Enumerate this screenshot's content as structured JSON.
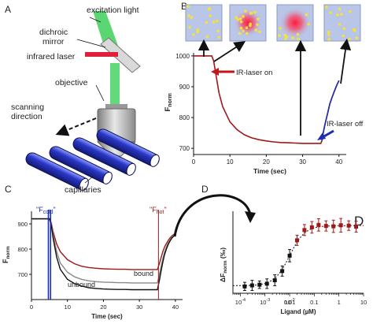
{
  "panels": {
    "A": {
      "letter": "A",
      "labels": {
        "excitation": "excitation light",
        "dichroic_1": "dichroic",
        "dichroic_2": "mirror",
        "infrared": "infrared laser",
        "objective": "objective",
        "scan_1": "scanning",
        "scan_2": "direction",
        "capillaries": "capillaries"
      }
    },
    "B": {
      "letter": "B",
      "annotations": {
        "ir_on": "IR-laser on",
        "ir_off": "IR-laser off"
      }
    },
    "C": {
      "letter": "C",
      "annotations": {
        "fcold": "\"F",
        "fcold_sub": "cold",
        "fhot": "\"F",
        "fhot_sub": "hot",
        "quote": "\"",
        "bound": "bound",
        "unbound": "unbound"
      }
    },
    "D": {
      "letter": "D",
      "corner_letter": "D"
    }
  },
  "colors": {
    "red_trace": "#a01818",
    "black_trace": "#111111",
    "grey_trace": "#888888",
    "blue_marker": "#1a2fb0",
    "arrow_red": "#c0161c",
    "capillary_blue": "#2a36c8",
    "laser_green": "#3dd05a",
    "dot_yellow": "#f4e23c",
    "spot_red": "#e8203a",
    "box_bg": "#b9c6e8"
  },
  "chart_data": [
    {
      "id": "B",
      "type": "line",
      "title": "",
      "xlabel": "Time (sec)",
      "ylabel": "F",
      "ylabel_sub": "norm",
      "xlim": [
        0,
        42
      ],
      "ylim": [
        680,
        1010
      ],
      "xticks": [
        0,
        10,
        20,
        30,
        40
      ],
      "yticks": [
        700,
        800,
        900,
        1000
      ],
      "x": [
        0,
        2,
        4,
        5,
        5.5,
        6,
        7,
        8,
        10,
        12,
        14,
        16,
        18,
        20,
        22,
        24,
        26,
        28,
        30,
        32,
        34,
        35,
        35.3,
        35.6,
        36,
        36.5,
        37,
        37.5,
        38,
        38.5,
        39,
        39.5,
        40
      ],
      "series": [
        {
          "name": "",
          "values": [
            1000,
            1000,
            1000,
            1000,
            985,
            950,
            880,
            835,
            786,
            760,
            744,
            734,
            728,
            724,
            721,
            719,
            718,
            717,
            716,
            716,
            716,
            716,
            725,
            745,
            770,
            795,
            820,
            845,
            862,
            878,
            893,
            908,
            920
          ]
        }
      ]
    },
    {
      "id": "C",
      "type": "line",
      "title": "",
      "xlabel": "Time (sec)",
      "ylabel": "F",
      "ylabel_sub": "norm",
      "xlim": [
        0,
        42
      ],
      "ylim": [
        600,
        950
      ],
      "xticks": [
        0,
        10,
        20,
        30,
        40
      ],
      "yticks": [
        700,
        800,
        900
      ],
      "x": [
        0,
        2,
        4,
        5,
        5.5,
        6,
        7,
        8,
        10,
        12,
        14,
        16,
        18,
        20,
        22,
        24,
        26,
        28,
        30,
        32,
        34,
        35,
        35.5,
        36,
        36.5,
        37,
        37.5,
        38,
        38.5,
        39,
        39.5,
        40
      ],
      "series": [
        {
          "name": "bound",
          "values": [
            920,
            920,
            920,
            920,
            905,
            870,
            820,
            790,
            758,
            742,
            732,
            727,
            724,
            722,
            721,
            720,
            720,
            719,
            719,
            719,
            719,
            719,
            740,
            765,
            790,
            808,
            822,
            834,
            844,
            852,
            858,
            862
          ]
        },
        {
          "name": "",
          "values": [
            920,
            920,
            920,
            920,
            900,
            858,
            790,
            745,
            708,
            690,
            680,
            674,
            671,
            669,
            668,
            667,
            667,
            666,
            666,
            666,
            666,
            666,
            695,
            730,
            762,
            788,
            808,
            824,
            836,
            846,
            854,
            860
          ]
        },
        {
          "name": "unbound",
          "values": [
            920,
            920,
            920,
            920,
            895,
            845,
            768,
            720,
            680,
            663,
            653,
            647,
            644,
            642,
            641,
            640,
            640,
            639,
            639,
            639,
            639,
            639,
            672,
            712,
            748,
            778,
            800,
            818,
            832,
            843,
            851,
            857
          ]
        }
      ],
      "markers": [
        4.7,
        5.3,
        35.3
      ]
    },
    {
      "id": "D",
      "type": "scatter",
      "title": "",
      "xlabel": "Ligand (µM)",
      "ylabel": "ΔF",
      "ylabel_sub": "norm",
      "ylabel_unit": "(‰)",
      "xscale": "log",
      "xlim": [
        5e-05,
        10
      ],
      "ylim": [
        -2,
        22
      ],
      "xtick_exponents": [
        -4,
        -3,
        -2
      ],
      "xtick_plain": [
        0.01,
        0.1,
        1,
        10
      ],
      "xtick_labels_plain": [
        "0.01",
        "0.1",
        "1",
        "10"
      ],
      "x": [
        0.00015,
        0.0003,
        0.0006,
        0.0012,
        0.0025,
        0.005,
        0.01,
        0.02,
        0.04,
        0.08,
        0.15,
        0.3,
        0.6,
        1.2,
        2.5,
        5
      ],
      "values": [
        0,
        0.3,
        0.5,
        0.8,
        1.8,
        4.5,
        9,
        13.5,
        16.5,
        17.3,
        18,
        17.7,
        17.6,
        17.9,
        17.8,
        17.5
      ],
      "errors": [
        1.2,
        1.5,
        1.1,
        1.4,
        1.6,
        1.5,
        1.8,
        1.5,
        1.6,
        1.7,
        1.8,
        1.5,
        1.8,
        2.0,
        1.4,
        1.6
      ],
      "fit": {
        "bottom": 0.2,
        "top": 17.8,
        "ec50": 0.01,
        "hill": 1.4
      },
      "grid": false
    }
  ]
}
